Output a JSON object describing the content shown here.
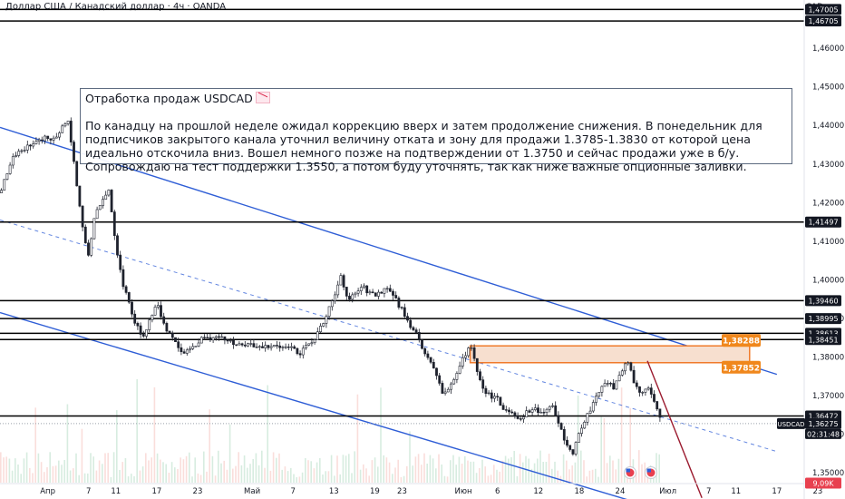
{
  "header": {
    "title": "Доллар США / Канадский доллар · 4ч · OANDA",
    "currency": "CAD"
  },
  "note": {
    "title": "Отработка продаж USDCAD",
    "title_icon": "chart-decreasing-icon",
    "body": "По канадцу на прошлой неделе ожидал коррекцию вверх и затем продолжение снижения. В понедельник для подписчиков закрытого канала уточнил величину отката и зону для продажи 1.3785-1.3830 от которой цена идеально отскочила вниз. Вошел немного позже на подтверждении от 1.3750 и сейчас продажи уже в б/у. Сопровождаю на тест поддержки 1.3550, а потом буду уточнять, так как ниже важные опционные заливки."
  },
  "colors": {
    "candle": "#1e222d",
    "level": "#000000",
    "channel": "#2f5ed6",
    "zone_fill": "#f7dfcf",
    "zone_border": "#f07a2b",
    "target_line": "#9b1b2f",
    "label_orange": "#f0871c",
    "volume_up": "#b7dcc7",
    "volume_down": "#f5c2bd",
    "axis_text": "#131722",
    "price_label_bg": "#131722"
  },
  "chart_data": {
    "type": "candlestick",
    "symbol": "USDCAD",
    "timeframe": "4ч",
    "y_range": [
      1.3432,
      1.4725
    ],
    "date_range": [
      "2024-03-25",
      "2024-07-27"
    ],
    "y_ticks": [
      1.35,
      1.36,
      1.37,
      1.38,
      1.39,
      1.4,
      1.41,
      1.42,
      1.43,
      1.44,
      1.45,
      1.46
    ],
    "x_ticks": [
      {
        "label": "Апр",
        "date": "2024-04-01"
      },
      {
        "label": "7",
        "date": "2024-04-07"
      },
      {
        "label": "11",
        "date": "2024-04-11"
      },
      {
        "label": "17",
        "date": "2024-04-17"
      },
      {
        "label": "23",
        "date": "2024-04-23"
      },
      {
        "label": "Май",
        "date": "2024-05-01"
      },
      {
        "label": "7",
        "date": "2024-05-07"
      },
      {
        "label": "13",
        "date": "2024-05-13"
      },
      {
        "label": "19",
        "date": "2024-05-19"
      },
      {
        "label": "23",
        "date": "2024-05-23"
      },
      {
        "label": "Июн",
        "date": "2024-06-01"
      },
      {
        "label": "6",
        "date": "2024-06-06"
      },
      {
        "label": "12",
        "date": "2024-06-12"
      },
      {
        "label": "18",
        "date": "2024-06-18"
      },
      {
        "label": "24",
        "date": "2024-06-24"
      },
      {
        "label": "Июл",
        "date": "2024-07-01"
      },
      {
        "label": "7",
        "date": "2024-07-07"
      },
      {
        "label": "11",
        "date": "2024-07-11"
      },
      {
        "label": "17",
        "date": "2024-07-17"
      },
      {
        "label": "23",
        "date": "2024-07-23"
      }
    ],
    "price_path": [
      {
        "date": "2024-03-25",
        "price": 1.4225
      },
      {
        "date": "2024-03-27",
        "price": 1.432
      },
      {
        "date": "2024-03-30",
        "price": 1.436
      },
      {
        "date": "2024-04-02",
        "price": 1.437
      },
      {
        "date": "2024-04-04",
        "price": 1.441
      },
      {
        "date": "2024-04-06",
        "price": 1.415
      },
      {
        "date": "2024-04-07",
        "price": 1.406
      },
      {
        "date": "2024-04-08",
        "price": 1.4175
      },
      {
        "date": "2024-04-09",
        "price": 1.421
      },
      {
        "date": "2024-04-10",
        "price": 1.423
      },
      {
        "date": "2024-04-11",
        "price": 1.408
      },
      {
        "date": "2024-04-12",
        "price": 1.399
      },
      {
        "date": "2024-04-14",
        "price": 1.388
      },
      {
        "date": "2024-04-15",
        "price": 1.385
      },
      {
        "date": "2024-04-17",
        "price": 1.3935
      },
      {
        "date": "2024-04-19",
        "price": 1.385
      },
      {
        "date": "2024-04-21",
        "price": 1.381
      },
      {
        "date": "2024-04-24",
        "price": 1.385
      },
      {
        "date": "2024-04-27",
        "price": 1.3845
      },
      {
        "date": "2024-04-30",
        "price": 1.383
      },
      {
        "date": "2024-05-03",
        "price": 1.3825
      },
      {
        "date": "2024-05-06",
        "price": 1.383
      },
      {
        "date": "2024-05-08",
        "price": 1.381
      },
      {
        "date": "2024-05-10",
        "price": 1.384
      },
      {
        "date": "2024-05-11",
        "price": 1.3875
      },
      {
        "date": "2024-05-13",
        "price": 1.3955
      },
      {
        "date": "2024-05-14",
        "price": 1.4005
      },
      {
        "date": "2024-05-15",
        "price": 1.395
      },
      {
        "date": "2024-05-17",
        "price": 1.3985
      },
      {
        "date": "2024-05-19",
        "price": 1.3955
      },
      {
        "date": "2024-05-21",
        "price": 1.3985
      },
      {
        "date": "2024-05-23",
        "price": 1.392
      },
      {
        "date": "2024-05-25",
        "price": 1.386
      },
      {
        "date": "2024-05-27",
        "price": 1.379
      },
      {
        "date": "2024-05-28",
        "price": 1.376
      },
      {
        "date": "2024-05-29",
        "price": 1.37
      },
      {
        "date": "2024-05-31",
        "price": 1.375
      },
      {
        "date": "2024-06-01",
        "price": 1.38
      },
      {
        "date": "2024-06-02",
        "price": 1.383
      },
      {
        "date": "2024-06-03",
        "price": 1.377
      },
      {
        "date": "2024-06-04",
        "price": 1.371
      },
      {
        "date": "2024-06-06",
        "price": 1.369
      },
      {
        "date": "2024-06-07",
        "price": 1.366
      },
      {
        "date": "2024-06-09",
        "price": 1.364
      },
      {
        "date": "2024-06-11",
        "price": 1.3665
      },
      {
        "date": "2024-06-13",
        "price": 1.3655
      },
      {
        "date": "2024-06-14",
        "price": 1.368
      },
      {
        "date": "2024-06-15",
        "price": 1.363
      },
      {
        "date": "2024-06-16",
        "price": 1.357
      },
      {
        "date": "2024-06-17",
        "price": 1.3545
      },
      {
        "date": "2024-06-18",
        "price": 1.361
      },
      {
        "date": "2024-06-20",
        "price": 1.368
      },
      {
        "date": "2024-06-21",
        "price": 1.371
      },
      {
        "date": "2024-06-22",
        "price": 1.374
      },
      {
        "date": "2024-06-23",
        "price": 1.3715
      },
      {
        "date": "2024-06-24",
        "price": 1.376
      },
      {
        "date": "2024-06-25",
        "price": 1.379
      },
      {
        "date": "2024-06-26",
        "price": 1.374
      },
      {
        "date": "2024-06-27",
        "price": 1.3705
      },
      {
        "date": "2024-06-28",
        "price": 1.373
      },
      {
        "date": "2024-06-29",
        "price": 1.369
      },
      {
        "date": "2024-06-30",
        "price": 1.3628
      }
    ],
    "horizontal_levels": [
      1.47005,
      1.46705,
      1.41497,
      1.3946,
      1.38995,
      1.38613,
      1.38451,
      1.36472
    ],
    "current_price": 1.36275,
    "countdown": "02:31:48",
    "sell_zone": {
      "from": "2024-06-02",
      "to": "2024-07-13",
      "low": 1.37852,
      "high": 1.38288
    },
    "channel_upper": [
      {
        "date": "2024-03-25",
        "price": 1.4395
      },
      {
        "date": "2024-07-17",
        "price": 1.3755
      }
    ],
    "channel_lower": [
      {
        "date": "2024-03-25",
        "price": 1.3915
      },
      {
        "date": "2024-06-27",
        "price": 1.342
      }
    ],
    "channel_mid": [
      {
        "date": "2024-03-25",
        "price": 1.4155
      },
      {
        "date": "2024-07-17",
        "price": 1.3555
      }
    ],
    "target_line": [
      {
        "date": "2024-06-28",
        "price": 1.379
      },
      {
        "date": "2024-07-06",
        "price": 1.3435
      }
    ],
    "label_lines": [
      {
        "date": "2024-07-13",
        "price": 1.38288
      },
      {
        "date": "2024-07-13",
        "price": 1.37852
      }
    ],
    "price_labels": [
      {
        "text": "1,47005",
        "price": 1.47005,
        "style": "level"
      },
      {
        "text": "1,46705",
        "price": 1.46705,
        "style": "level"
      },
      {
        "text": "1,41497",
        "price": 1.41497,
        "style": "level"
      },
      {
        "text": "1,39460",
        "price": 1.3946,
        "style": "level"
      },
      {
        "text": "1,38995",
        "price": 1.38995,
        "style": "level"
      },
      {
        "text": "1,38613",
        "price": 1.38613,
        "style": "level"
      },
      {
        "text": "1,38451",
        "price": 1.38451,
        "style": "level"
      },
      {
        "text": "1,36472",
        "price": 1.36472,
        "style": "level"
      },
      {
        "text": "1,36275",
        "price": 1.36275,
        "style": "level"
      }
    ],
    "symbol_tag": "USDCAD",
    "orange_labels": [
      {
        "text": "1,38288",
        "price": 1.38288
      },
      {
        "text": "1,37852",
        "price": 1.37852
      }
    ],
    "volume_label": "9,09K",
    "volume_label_price": 1.3473
  }
}
